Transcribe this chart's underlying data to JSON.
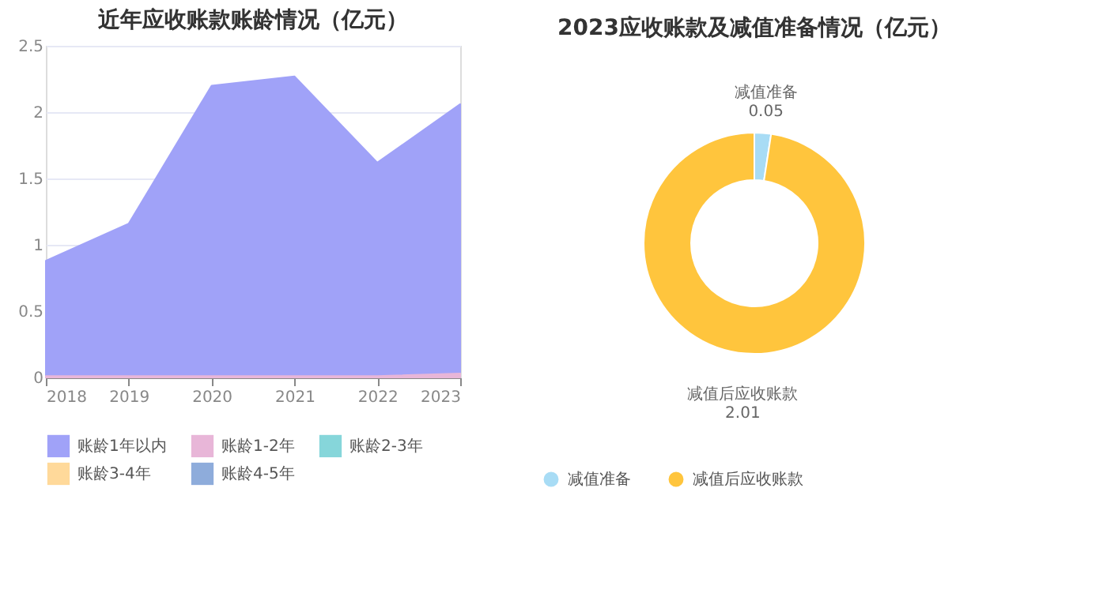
{
  "chart_data": [
    {
      "type": "area",
      "title": "近年应收账款账龄情况（亿元）",
      "categories": [
        "2018",
        "2019",
        "2020",
        "2021",
        "2022",
        "2023"
      ],
      "stacked": false,
      "ylim": [
        0,
        2.5
      ],
      "yticks": [
        0,
        0.5,
        1,
        1.5,
        2,
        2.5
      ],
      "grid": "y",
      "legend": "bottom",
      "series": [
        {
          "name": "账龄1年以内",
          "color": "#a0a2f8",
          "values": [
            0.88,
            1.16,
            2.2,
            2.27,
            1.62,
            2.06
          ]
        },
        {
          "name": "账龄1-2年",
          "color": "#e8b6d8",
          "values": [
            0.01,
            0.01,
            0.01,
            0.01,
            0.01,
            0.03
          ]
        },
        {
          "name": "账龄2-3年",
          "color": "#86d6da",
          "values": [
            null,
            null,
            null,
            null,
            null,
            null
          ]
        },
        {
          "name": "账龄3-4年",
          "color": "#ffd99a",
          "values": [
            null,
            null,
            null,
            null,
            null,
            null
          ]
        },
        {
          "name": "账龄4-5年",
          "color": "#8eacdb",
          "values": [
            null,
            null,
            null,
            null,
            null,
            null
          ]
        }
      ]
    },
    {
      "type": "donut",
      "title": "2023应收账款及减值准备情况（亿元）",
      "categories": [
        "减值准备",
        "减值后应收账款"
      ],
      "values": [
        0.05,
        2.01
      ],
      "colors": [
        "#a8dcf5",
        "#ffc53d"
      ],
      "data_labels": true,
      "legend": "bottom"
    }
  ]
}
